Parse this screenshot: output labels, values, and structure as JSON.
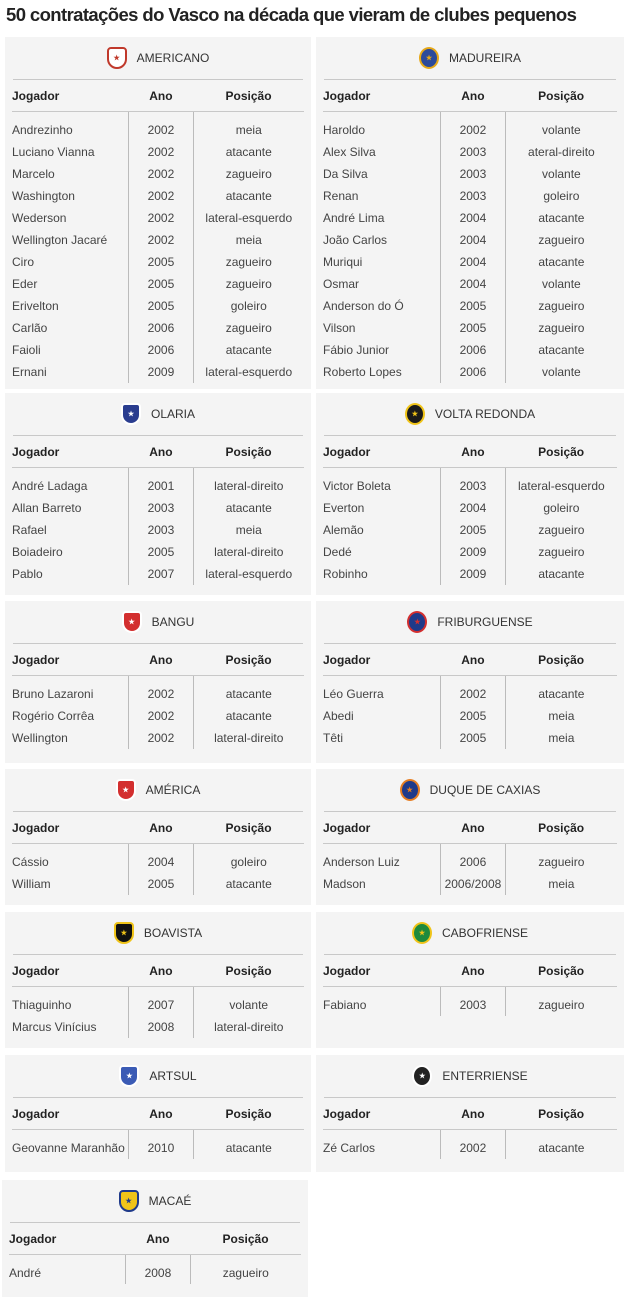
{
  "title": "50 contratações do Vasco na década que vieram de clubes pequenos",
  "columns": {
    "player": "Jogador",
    "year": "Ano",
    "position": "Posição"
  },
  "clubs": [
    {
      "name": "AMERICANO",
      "logo_color": "#c0392b",
      "logo_bg": "#ffffff",
      "logo_icon": "americano-crest-icon",
      "players": [
        [
          "Andrezinho",
          "2002",
          "meia"
        ],
        [
          "Luciano Vianna",
          "2002",
          "atacante"
        ],
        [
          "Marcelo",
          "2002",
          "zagueiro"
        ],
        [
          "Washington",
          "2002",
          "atacante"
        ],
        [
          "Wederson",
          "2002",
          "lateral-esquerdo"
        ],
        [
          "Wellington Jacaré",
          "2002",
          "meia"
        ],
        [
          "Ciro",
          "2005",
          "zagueiro"
        ],
        [
          "Eder",
          "2005",
          "zagueiro"
        ],
        [
          "Erivelton",
          "2005",
          "goleiro"
        ],
        [
          "Carlão",
          "2006",
          "zagueiro"
        ],
        [
          "Faioli",
          "2006",
          "atacante"
        ],
        [
          "Ernani",
          "2009",
          "lateral-esquerdo"
        ]
      ]
    },
    {
      "name": "MADUREIRA",
      "logo_color": "#e6a817",
      "logo_bg": "#2c4a9a",
      "logo_icon": "madureira-crest-icon",
      "players": [
        [
          "Haroldo",
          "2002",
          "volante"
        ],
        [
          "Alex Silva",
          "2003",
          "ateral-direito"
        ],
        [
          "Da Silva",
          "2003",
          "volante"
        ],
        [
          "Renan",
          "2003",
          "goleiro"
        ],
        [
          "André Lima",
          "2004",
          "atacante"
        ],
        [
          "João Carlos",
          "2004",
          "zagueiro"
        ],
        [
          "Muriqui",
          "2004",
          "atacante"
        ],
        [
          "Osmar",
          "2004",
          "volante"
        ],
        [
          "Anderson do Ó",
          "2005",
          "zagueiro"
        ],
        [
          "Vilson",
          "2005",
          "zagueiro"
        ],
        [
          "Fábio Junior",
          "2006",
          "atacante"
        ],
        [
          "Roberto Lopes",
          "2006",
          "volante"
        ]
      ]
    },
    {
      "name": "OLARIA",
      "logo_color": "#ffffff",
      "logo_bg": "#2a3d8f",
      "logo_icon": "olaria-crest-icon",
      "players": [
        [
          "André Ladaga",
          "2001",
          "lateral-direito"
        ],
        [
          "Allan Barreto",
          "2003",
          "atacante"
        ],
        [
          "Rafael",
          "2003",
          "meia"
        ],
        [
          "Boiadeiro",
          "2005",
          "lateral-direito"
        ],
        [
          "Pablo",
          "2007",
          "lateral-esquerdo"
        ]
      ]
    },
    {
      "name": "VOLTA REDONDA",
      "logo_color": "#f0c419",
      "logo_bg": "#1a1a1a",
      "logo_icon": "volta-redonda-crest-icon",
      "players": [
        [
          "Victor Boleta",
          "2003",
          "lateral-esquerdo"
        ],
        [
          "Everton",
          "2004",
          "goleiro"
        ],
        [
          "Alemão",
          "2005",
          "zagueiro"
        ],
        [
          "Dedé",
          "2009",
          "zagueiro"
        ],
        [
          "Robinho",
          "2009",
          "atacante"
        ]
      ]
    },
    {
      "name": "BANGU",
      "logo_color": "#ffffff",
      "logo_bg": "#d32f2f",
      "logo_icon": "bangu-crest-icon",
      "players": [
        [
          "Bruno Lazaroni",
          "2002",
          "atacante"
        ],
        [
          "Rogério Corrêa",
          "2002",
          "atacante"
        ],
        [
          "Wellington",
          "2002",
          "lateral-direito"
        ]
      ]
    },
    {
      "name": "FRIBURGUENSE",
      "logo_color": "#d32f2f",
      "logo_bg": "#1f3a8a",
      "logo_icon": "friburguense-crest-icon",
      "players": [
        [
          "Léo Guerra",
          "2002",
          "atacante"
        ],
        [
          "Abedi",
          "2005",
          "meia"
        ],
        [
          "Têti",
          "2005",
          "meia"
        ]
      ]
    },
    {
      "name": "AMÉRICA",
      "logo_color": "#ffffff",
      "logo_bg": "#d32f2f",
      "logo_icon": "america-crest-icon",
      "players": [
        [
          "Cássio",
          "2004",
          "goleiro"
        ],
        [
          "William",
          "2005",
          "atacante"
        ]
      ]
    },
    {
      "name": "DUQUE DE CAXIAS",
      "logo_color": "#e67e22",
      "logo_bg": "#1f3a8a",
      "logo_icon": "duque-de-caxias-crest-icon",
      "players": [
        [
          "Anderson Luiz",
          "2006",
          "zagueiro"
        ],
        [
          "Madson",
          "2006/2008",
          "meia"
        ]
      ]
    },
    {
      "name": "BOAVISTA",
      "logo_color": "#f0c419",
      "logo_bg": "#111111",
      "logo_icon": "boavista-crest-icon",
      "players": [
        [
          "Thiaguinho",
          "2007",
          "volante"
        ],
        [
          "Marcus Vinícius",
          "2008",
          "lateral-direito"
        ]
      ]
    },
    {
      "name": "CABOFRIENSE",
      "logo_color": "#f0c419",
      "logo_bg": "#1e8a3c",
      "logo_icon": "cabofriense-crest-icon",
      "players": [
        [
          "Fabiano",
          "2003",
          "zagueiro"
        ]
      ]
    },
    {
      "name": "ARTSUL",
      "logo_color": "#ffffff",
      "logo_bg": "#3b5bb5",
      "logo_icon": "artsul-crest-icon",
      "players": [
        [
          "Geovanne Maranhão",
          "2010",
          "atacante"
        ]
      ]
    },
    {
      "name": "ENTERRIENSE",
      "logo_color": "#ffffff",
      "logo_bg": "#222222",
      "logo_icon": "entrerriense-crest-icon",
      "players": [
        [
          "Zé Carlos",
          "2002",
          "atacante"
        ]
      ]
    },
    {
      "name": "MACAÉ",
      "logo_color": "#1f3a8a",
      "logo_bg": "#f0c419",
      "logo_icon": "macae-crest-icon",
      "players": [
        [
          "André",
          "2008",
          "zagueiro"
        ]
      ]
    }
  ]
}
